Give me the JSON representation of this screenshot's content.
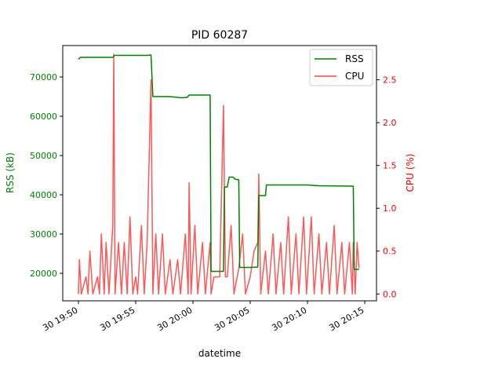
{
  "chart_data": {
    "type": "line",
    "title": "PID 60287",
    "xlabel": "datetime",
    "ylabel_left": "RSS (kB)",
    "ylabel_right": "CPU (%)",
    "x_ticks": [
      "30 19:50",
      "30 19:55",
      "30 20:00",
      "30 20:05",
      "30 20:10",
      "30 20:15"
    ],
    "y_left_ticks": [
      20000,
      30000,
      40000,
      50000,
      60000,
      70000
    ],
    "y_right_ticks": [
      0.0,
      0.5,
      1.0,
      1.5,
      2.0,
      2.5
    ],
    "y_left_range": [
      13000,
      78000
    ],
    "y_right_range": [
      -0.08,
      2.9
    ],
    "legend_position": "top-right",
    "colors": {
      "rss": "#008000",
      "cpu": "#ff4444",
      "left_axis": "#008000",
      "right_axis": "#ff0000"
    },
    "series": [
      {
        "name": "RSS",
        "axis": "left",
        "points": [
          [
            "19:50",
            74500
          ],
          [
            "19:50:10",
            75000
          ],
          [
            "19:51",
            75000
          ],
          [
            "19:53",
            75000
          ],
          [
            "19:53:10",
            75500
          ],
          [
            "19:55",
            75500
          ],
          [
            "19:56",
            75500
          ],
          [
            "19:56:20",
            75600
          ],
          [
            "19:56:30",
            65000
          ],
          [
            "19:58",
            65000
          ],
          [
            "19:59",
            64700
          ],
          [
            "19:59:30",
            64800
          ],
          [
            "19:59:40",
            65400
          ],
          [
            "20:01:30",
            65400
          ],
          [
            "20:01:35",
            20500
          ],
          [
            "20:02:40",
            20500
          ],
          [
            "20:02:45",
            42000
          ],
          [
            "20:03",
            42000
          ],
          [
            "20:03:10",
            44500
          ],
          [
            "20:03:30",
            44500
          ],
          [
            "20:03:40",
            44000
          ],
          [
            "20:04",
            43800
          ],
          [
            "20:04:05",
            21500
          ],
          [
            "20:05",
            21500
          ],
          [
            "20:05:40",
            21600
          ],
          [
            "20:05:45",
            39800
          ],
          [
            "20:06:20",
            39800
          ],
          [
            "20:06:25",
            42500
          ],
          [
            "20:09",
            42500
          ],
          [
            "20:10",
            42500
          ],
          [
            "20:11",
            42300
          ],
          [
            "20:14",
            42200
          ],
          [
            "20:14:05",
            21000
          ],
          [
            "20:14:30",
            21000
          ]
        ]
      },
      {
        "name": "CPU",
        "axis": "right",
        "points": [
          [
            "19:50",
            0.0
          ],
          [
            "19:50:05",
            0.4
          ],
          [
            "19:50:15",
            0.0
          ],
          [
            "19:50:40",
            0.2
          ],
          [
            "19:50:50",
            0.0
          ],
          [
            "19:51",
            0.5
          ],
          [
            "19:51:15",
            0.0
          ],
          [
            "19:51:40",
            0.2
          ],
          [
            "19:51:50",
            0.0
          ],
          [
            "19:52",
            0.7
          ],
          [
            "19:52:15",
            0.0
          ],
          [
            "19:52:25",
            0.6
          ],
          [
            "19:52:40",
            0.0
          ],
          [
            "19:53",
            0.8
          ],
          [
            "19:53:05",
            2.8
          ],
          [
            "19:53:12",
            0.0
          ],
          [
            "19:53:30",
            0.6
          ],
          [
            "19:53:45",
            0.0
          ],
          [
            "19:54",
            0.6
          ],
          [
            "19:54:15",
            0.0
          ],
          [
            "19:54:30",
            0.9
          ],
          [
            "19:54:45",
            0.0
          ],
          [
            "19:55",
            0.2
          ],
          [
            "19:55:10",
            0.0
          ],
          [
            "19:55:30",
            0.8
          ],
          [
            "19:55:45",
            0.0
          ],
          [
            "19:56",
            0.6
          ],
          [
            "19:56:20",
            2.5
          ],
          [
            "19:56:30",
            0.0
          ],
          [
            "19:56:45",
            0.7
          ],
          [
            "19:57",
            0.0
          ],
          [
            "19:57:20",
            0.7
          ],
          [
            "19:57:35",
            0.0
          ],
          [
            "19:58",
            0.4
          ],
          [
            "19:58:15",
            0.0
          ],
          [
            "19:58:40",
            0.4
          ],
          [
            "19:58:55",
            0.0
          ],
          [
            "19:59:20",
            0.7
          ],
          [
            "19:59:35",
            0.0
          ],
          [
            "19:59:40",
            1.3
          ],
          [
            "19:59:50",
            0.0
          ],
          [
            "20:00:10",
            0.8
          ],
          [
            "20:00:25",
            0.0
          ],
          [
            "20:00:50",
            0.6
          ],
          [
            "20:01:05",
            0.0
          ],
          [
            "20:01:30",
            0.6
          ],
          [
            "20:01:35",
            0.0
          ],
          [
            "20:01:50",
            0.2
          ],
          [
            "20:02",
            0.2
          ],
          [
            "20:02:20",
            0.2
          ],
          [
            "20:02:40",
            2.2
          ],
          [
            "20:02:50",
            0.2
          ],
          [
            "20:03",
            0.2
          ],
          [
            "20:03:20",
            0.8
          ],
          [
            "20:03:35",
            0.0
          ],
          [
            "20:04",
            0.3
          ],
          [
            "20:04:20",
            0.7
          ],
          [
            "20:04:35",
            0.0
          ],
          [
            "20:05",
            0.2
          ],
          [
            "20:05:20",
            0.5
          ],
          [
            "20:05:40",
            0.6
          ],
          [
            "20:05:45",
            1.4
          ],
          [
            "20:05:55",
            0.0
          ],
          [
            "20:06:20",
            0.5
          ],
          [
            "20:06:35",
            0.0
          ],
          [
            "20:07",
            0.7
          ],
          [
            "20:07:15",
            0.0
          ],
          [
            "20:07:40",
            0.6
          ],
          [
            "20:07:55",
            0.0
          ],
          [
            "20:08:20",
            0.9
          ],
          [
            "20:08:35",
            0.0
          ],
          [
            "20:09",
            0.7
          ],
          [
            "20:09:15",
            0.0
          ],
          [
            "20:09:40",
            0.9
          ],
          [
            "20:09:55",
            0.0
          ],
          [
            "20:10:20",
            0.9
          ],
          [
            "20:10:35",
            0.0
          ],
          [
            "20:11",
            0.7
          ],
          [
            "20:11:15",
            0.0
          ],
          [
            "20:11:40",
            0.6
          ],
          [
            "20:11:55",
            0.0
          ],
          [
            "20:12:20",
            0.8
          ],
          [
            "20:12:35",
            0.0
          ],
          [
            "20:13",
            0.6
          ],
          [
            "20:13:15",
            0.0
          ],
          [
            "20:13:40",
            0.6
          ],
          [
            "20:13:55",
            0.0
          ],
          [
            "20:14",
            0.6
          ],
          [
            "20:14:10",
            0.0
          ],
          [
            "20:14:20",
            0.6
          ],
          [
            "20:14:30",
            0.3
          ]
        ]
      }
    ]
  }
}
